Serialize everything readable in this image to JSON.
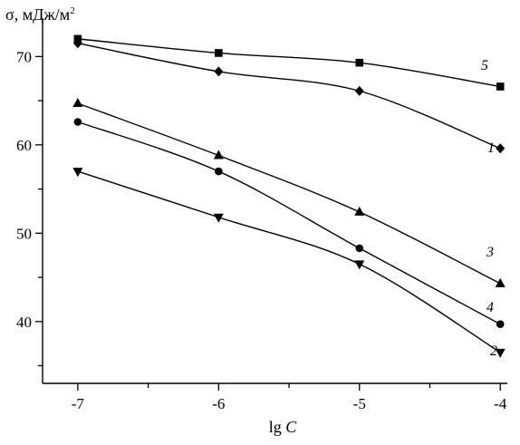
{
  "chart_data": {
    "type": "line",
    "xlabel_main": "lg ",
    "xlabel_var": "C",
    "ylabel": "σ, мДж/м",
    "ylabel_sup": "2",
    "xlim": [
      -7.25,
      -3.95
    ],
    "ylim": [
      33,
      72.5
    ],
    "xticks": [
      -7,
      -6,
      -5,
      -4
    ],
    "xtick_labels": [
      "-7",
      "-6",
      "-5",
      "-4"
    ],
    "yticks": [
      40,
      50,
      60,
      70
    ],
    "ytick_labels": [
      "40",
      "50",
      "60",
      "70"
    ],
    "grid": false,
    "series": [
      {
        "name": "1",
        "marker": "diamond",
        "x": [
          -7,
          -6,
          -5,
          -4
        ],
        "y": [
          71.5,
          68.3,
          66.1,
          59.6
        ]
      },
      {
        "name": "2",
        "marker": "triangle-down",
        "x": [
          -7,
          -6,
          -5,
          -4
        ],
        "y": [
          57.0,
          51.8,
          46.5,
          36.5
        ]
      },
      {
        "name": "3",
        "marker": "triangle-up",
        "x": [
          -7,
          -6,
          -5,
          -4
        ],
        "y": [
          64.7,
          58.8,
          52.4,
          44.3
        ]
      },
      {
        "name": "4",
        "marker": "circle",
        "x": [
          -7,
          -6,
          -5,
          -4
        ],
        "y": [
          62.6,
          57.0,
          48.3,
          39.7
        ]
      },
      {
        "name": "5",
        "marker": "square",
        "x": [
          -7,
          -6,
          -5,
          -4
        ],
        "y": [
          72.0,
          70.4,
          69.3,
          66.6
        ]
      }
    ]
  }
}
